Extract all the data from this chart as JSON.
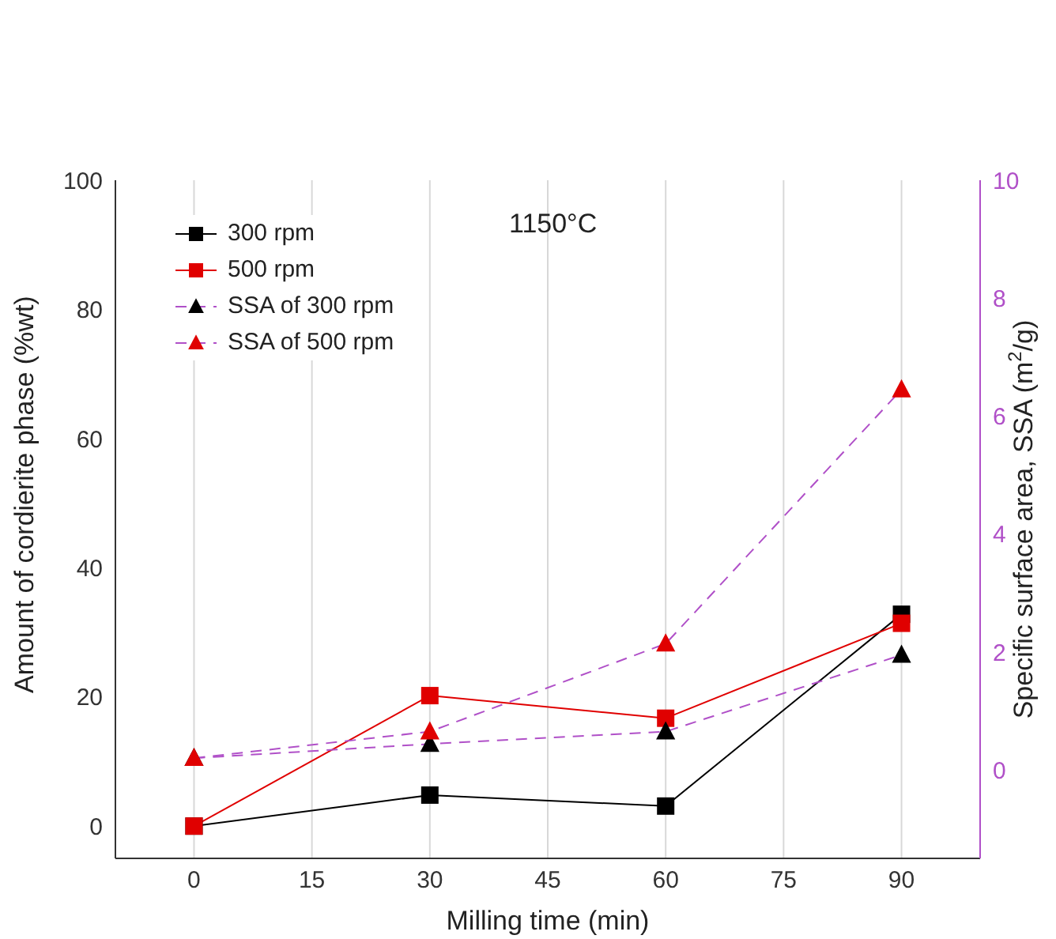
{
  "chart_data": {
    "type": "line",
    "xlabel": "Milling time (min)",
    "ylabel": "Amount of cordierite phase (%wt)",
    "y2label": "Specific surface area, SSA (m$^{2}$/g)",
    "x": [
      0,
      30,
      60,
      90
    ],
    "xlim": [
      -10,
      100
    ],
    "xticks": [
      0,
      15,
      30,
      45,
      60,
      75,
      90
    ],
    "ylim": [
      -5,
      100
    ],
    "yticks": [
      0,
      20,
      40,
      60,
      80,
      100
    ],
    "y2lim": [
      -1.5,
      10
    ],
    "y2ticks": [
      0,
      2,
      4,
      6,
      8,
      10
    ],
    "grid": "x",
    "legend": "top left",
    "annotations": [
      "1150°C"
    ],
    "series": [
      {
        "name": "300 rpm",
        "color": "#000000",
        "marker": "square",
        "line_style": "solid",
        "values": [
          0,
          4.8,
          3.1,
          32.8
        ]
      },
      {
        "name": "500 rpm",
        "color": "#e00000",
        "marker": "square",
        "line_style": "solid",
        "values": [
          0,
          20.2,
          16.7,
          31.4
        ]
      },
      {
        "name": "SSA of 300 rpm",
        "color": "#000000",
        "marker": "triangle",
        "line_style": "dashed",
        "axis": "y2",
        "values": [
          0.2,
          0.44,
          0.65,
          1.95
        ]
      },
      {
        "name": "SSA of 500 rpm",
        "color": "#e00000",
        "marker": "triangle",
        "line_style": "dashed",
        "axis": "y2",
        "values": [
          0.2,
          0.65,
          2.14,
          6.45
        ]
      }
    ]
  }
}
